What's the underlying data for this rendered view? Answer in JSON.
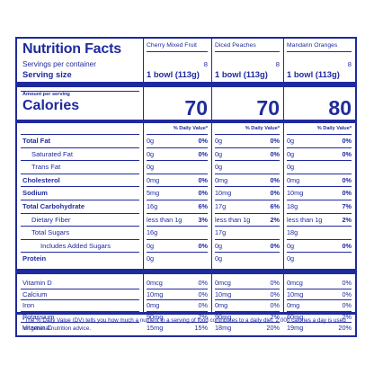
{
  "header": {
    "title": "Nutrition Facts",
    "servings_label": "Servings per container",
    "serving_size_label": "Serving size",
    "amount_per_serving": "Amount per serving",
    "calories_label": "Calories",
    "dv_header": "% Daily Value*"
  },
  "products": [
    {
      "name": "Cherry Mixed Fruit",
      "servings": "8",
      "serving_size": "1 bowl (113g)",
      "calories": "70"
    },
    {
      "name": "Diced Peaches",
      "servings": "8",
      "serving_size": "1 bowl (113g)",
      "calories": "70"
    },
    {
      "name": "Mandarin Oranges",
      "servings": "8",
      "serving_size": "1 bowl (113g)",
      "calories": "80"
    }
  ],
  "nutrients": [
    {
      "label": "Total Fat",
      "bold": true,
      "indent": 0,
      "values": [
        [
          "0g",
          "0%"
        ],
        [
          "0g",
          "0%"
        ],
        [
          "0g",
          "0%"
        ]
      ]
    },
    {
      "label": "Saturated Fat",
      "bold": false,
      "indent": 1,
      "values": [
        [
          "0g",
          "0%"
        ],
        [
          "0g",
          "0%"
        ],
        [
          "0g",
          "0%"
        ]
      ]
    },
    {
      "label": "Trans Fat",
      "bold": false,
      "indent": 1,
      "values": [
        [
          "0g",
          ""
        ],
        [
          "0g",
          ""
        ],
        [
          "0g",
          ""
        ]
      ]
    },
    {
      "label": "Cholesterol",
      "bold": true,
      "indent": 0,
      "values": [
        [
          "0mg",
          "0%"
        ],
        [
          "0mg",
          "0%"
        ],
        [
          "0mg",
          "0%"
        ]
      ]
    },
    {
      "label": "Sodium",
      "bold": true,
      "indent": 0,
      "values": [
        [
          "5mg",
          "0%"
        ],
        [
          "10mg",
          "0%"
        ],
        [
          "10mg",
          "0%"
        ]
      ]
    },
    {
      "label": "Total Carbohydrate",
      "bold": true,
      "indent": 0,
      "values": [
        [
          "16g",
          "6%"
        ],
        [
          "17g",
          "6%"
        ],
        [
          "18g",
          "7%"
        ]
      ]
    },
    {
      "label": "Dietary Fiber",
      "bold": false,
      "indent": 1,
      "values": [
        [
          "less than 1g",
          "3%"
        ],
        [
          "less than 1g",
          "2%"
        ],
        [
          "less than 1g",
          "2%"
        ]
      ]
    },
    {
      "label": "Total Sugars",
      "bold": false,
      "indent": 1,
      "values": [
        [
          "16g",
          ""
        ],
        [
          "17g",
          ""
        ],
        [
          "18g",
          ""
        ]
      ]
    },
    {
      "label": "Includes Added Sugars",
      "bold": false,
      "indent": 2,
      "values": [
        [
          "0g",
          "0%"
        ],
        [
          "0g",
          "0%"
        ],
        [
          "0g",
          "0%"
        ]
      ]
    },
    {
      "label": "Protein",
      "bold": true,
      "indent": 0,
      "values": [
        [
          "0g",
          ""
        ],
        [
          "0g",
          ""
        ],
        [
          "0g",
          ""
        ]
      ]
    }
  ],
  "vitamins": [
    {
      "label": "Vitamin D",
      "values": [
        [
          "0mcg",
          "0%"
        ],
        [
          "0mcg",
          "0%"
        ],
        [
          "0mcg",
          "0%"
        ]
      ]
    },
    {
      "label": "Calcium",
      "values": [
        [
          "10mg",
          "0%"
        ],
        [
          "10mg",
          "0%"
        ],
        [
          "10mg",
          "0%"
        ]
      ]
    },
    {
      "label": "Iron",
      "values": [
        [
          "0mg",
          "0%"
        ],
        [
          "0mg",
          "0%"
        ],
        [
          "0mg",
          "0%"
        ]
      ]
    },
    {
      "label": "Potassium",
      "values": [
        [
          "90mg",
          "2%"
        ],
        [
          "90mg",
          "2%"
        ],
        [
          "60mg",
          "2%"
        ]
      ]
    },
    {
      "label": "Vitamin C",
      "values": [
        [
          "15mg",
          "15%"
        ],
        [
          "18mg",
          "20%"
        ],
        [
          "19mg",
          "20%"
        ]
      ]
    }
  ],
  "footnote": "*The % Daily Value (DV) tells you how much a nutrient in a serving of food contributes to a daily diet. 2,000 calories a day is used for general nutrition advice."
}
